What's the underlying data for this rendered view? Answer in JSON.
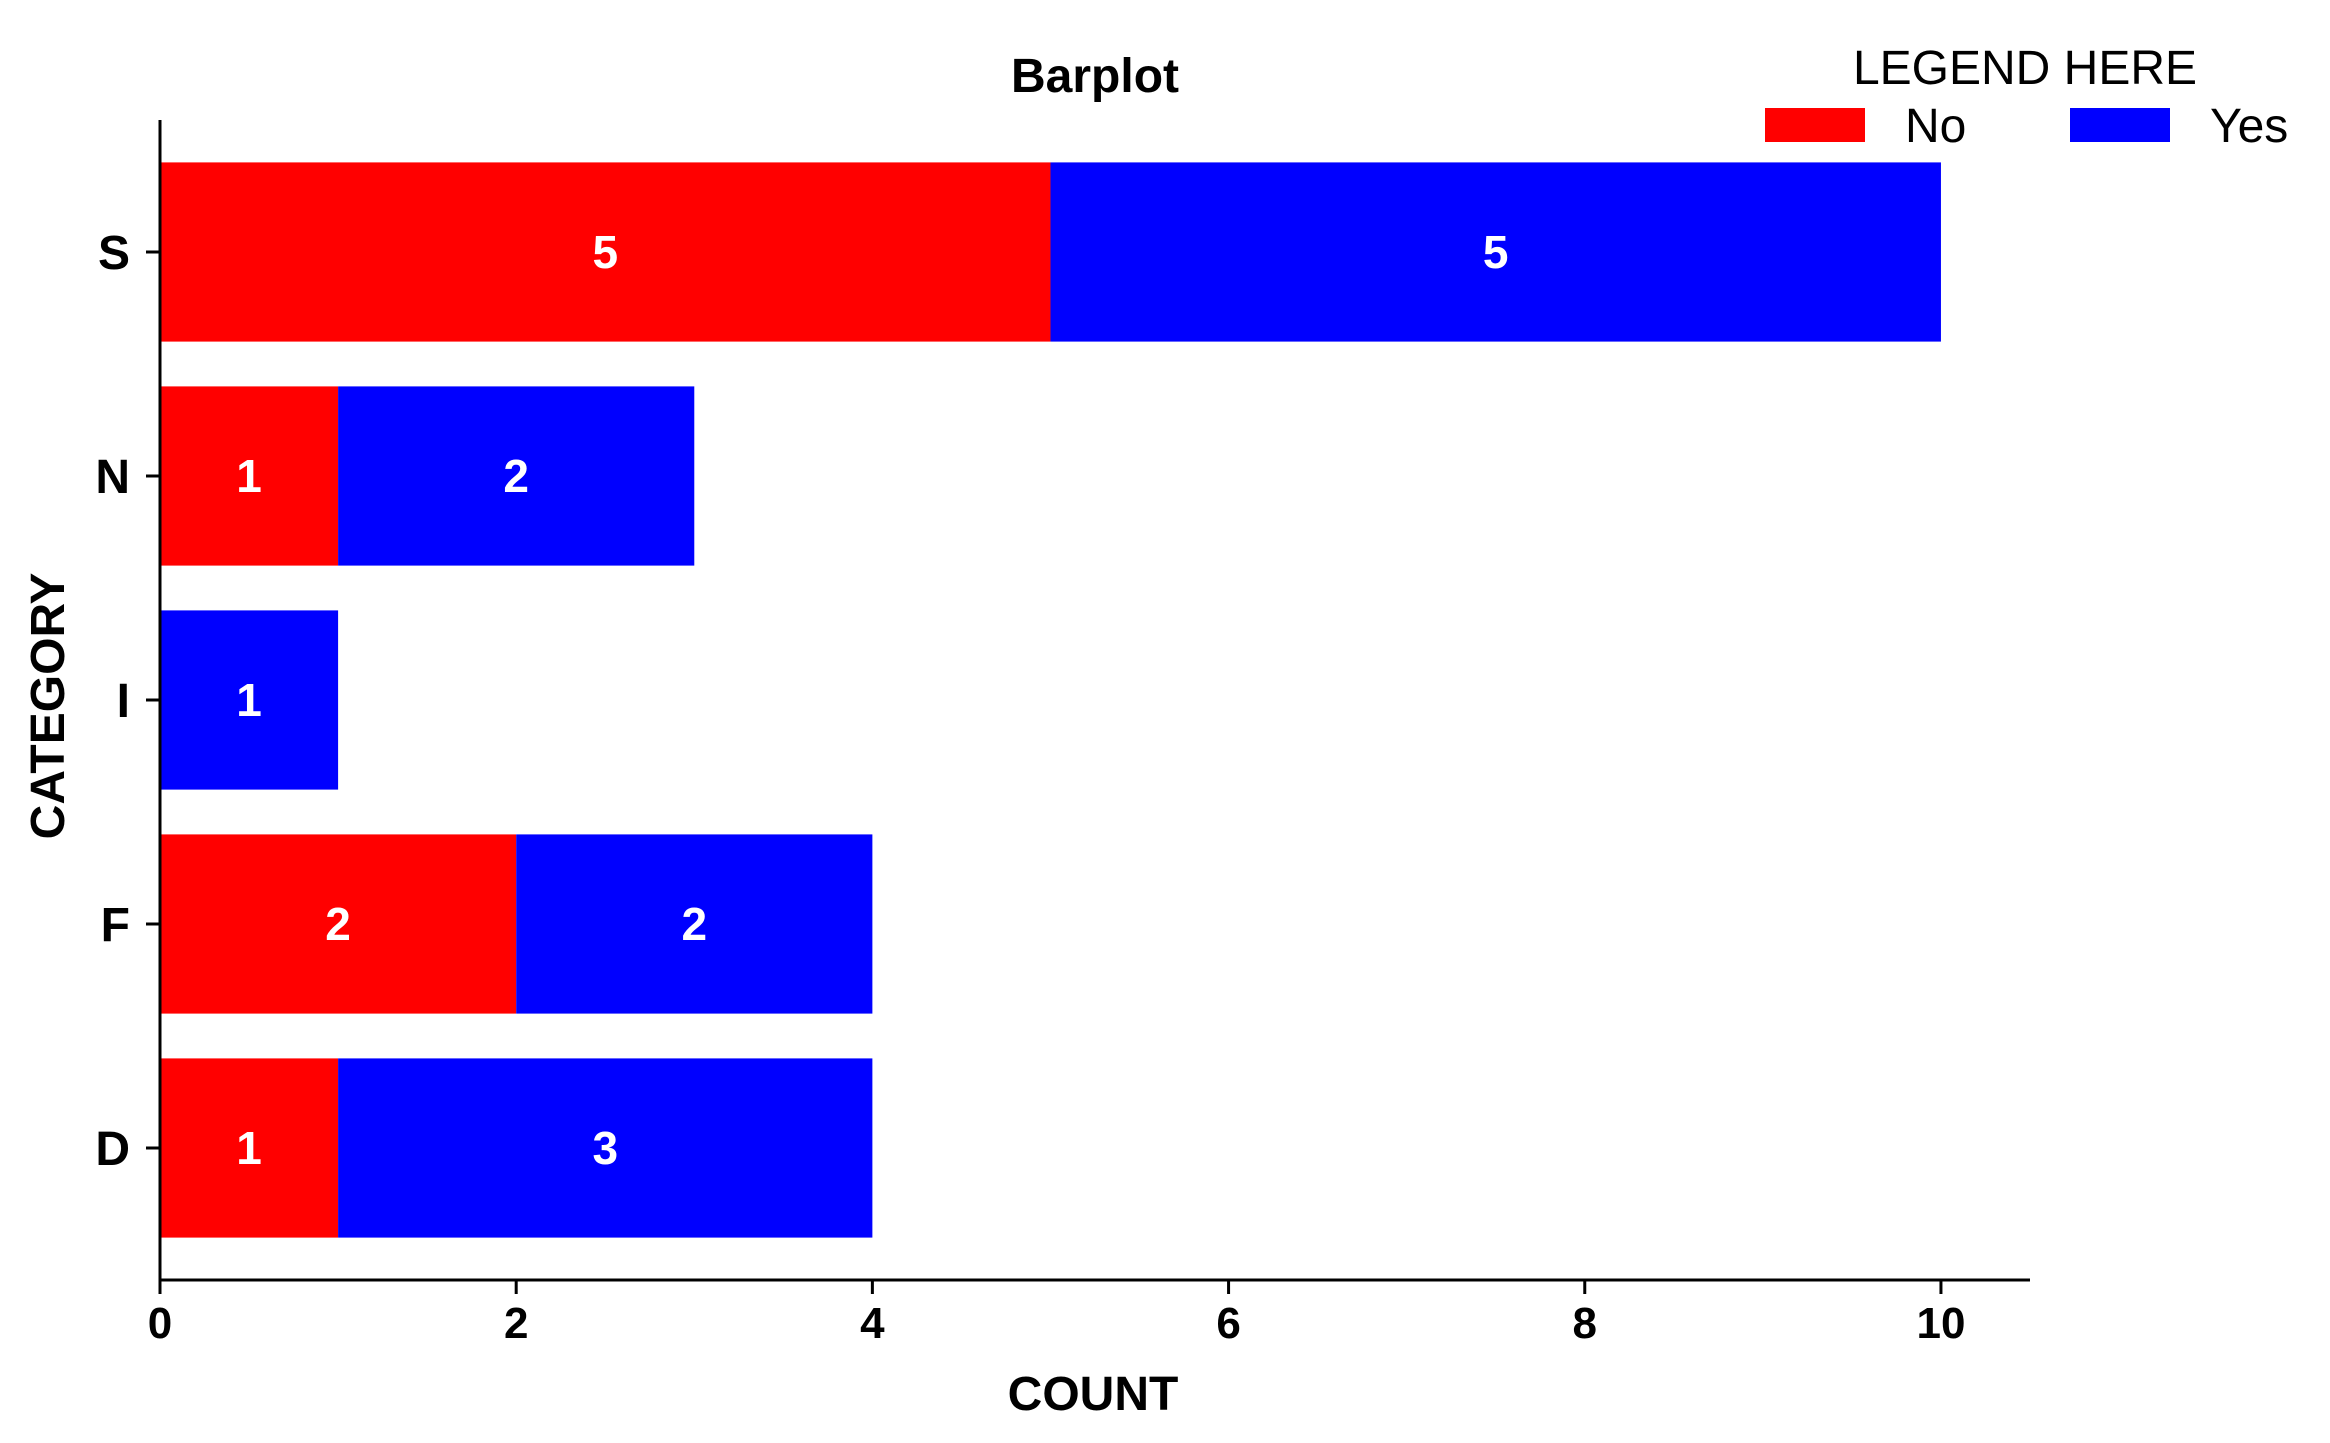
{
  "chart_data": {
    "type": "bar",
    "orientation": "horizontal",
    "stacked": true,
    "title": "Barplot",
    "xlabel": "COUNT",
    "ylabel": "CATEGORY",
    "xlim": [
      0,
      10.5
    ],
    "xticks": [
      0,
      2,
      4,
      6,
      8,
      10
    ],
    "categories": [
      "S",
      "N",
      "I",
      "F",
      "D"
    ],
    "series": [
      {
        "name": "No",
        "color": "#ff0000",
        "values": [
          5,
          1,
          0,
          2,
          1
        ]
      },
      {
        "name": "Yes",
        "color": "#0000ff",
        "values": [
          5,
          2,
          1,
          2,
          3
        ]
      }
    ],
    "legend": {
      "title": "LEGEND HERE",
      "placement": "top-right"
    },
    "grid": false,
    "data_labels": true
  }
}
